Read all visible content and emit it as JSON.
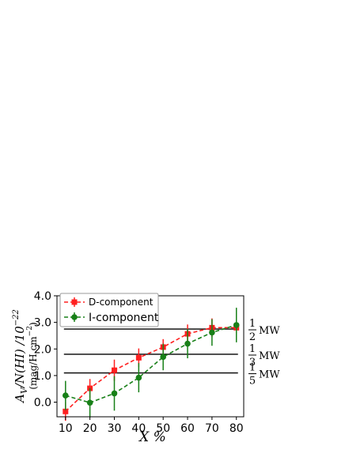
{
  "chart_data": {
    "type": "line",
    "x": [
      10,
      20,
      30,
      40,
      50,
      60,
      70,
      80
    ],
    "xticks": [
      "10",
      "20",
      "30",
      "40",
      "50",
      "60",
      "70",
      "80"
    ],
    "yticks": [
      "0.0",
      "1.0",
      "2.0",
      "3.0",
      "4.0"
    ],
    "ylim": [
      -0.55,
      4.0
    ],
    "xlim": [
      6.5,
      83
    ],
    "xlabel": "X %",
    "ylabel_main": "A_V/N(HI) /10^-22",
    "ylabel_units": "(mag/H cm^-2)",
    "grid": false,
    "legend_position": "top-left",
    "series": [
      {
        "name": "D-component",
        "color": "#ff2020",
        "marker": "square",
        "values": [
          -0.35,
          0.52,
          1.2,
          1.67,
          2.07,
          2.57,
          2.8,
          2.8
        ],
        "err": [
          0.35,
          0.35,
          0.4,
          0.35,
          0.3,
          0.35,
          0.35,
          0.5
        ]
      },
      {
        "name": "I-component",
        "color": "#188018",
        "marker": "circle",
        "values": [
          0.25,
          -0.02,
          0.33,
          0.92,
          1.7,
          2.2,
          2.62,
          2.9
        ],
        "err": [
          0.55,
          0.55,
          0.65,
          0.55,
          0.5,
          0.55,
          0.5,
          0.65
        ]
      }
    ],
    "reference_lines": [
      {
        "value": 2.75,
        "frac_num": "1",
        "frac_den": "2",
        "label": "MW"
      },
      {
        "value": 1.8,
        "frac_num": "1",
        "frac_den": "3",
        "label": "MW"
      },
      {
        "value": 1.1,
        "frac_num": "1",
        "frac_den": "5",
        "label": "MW"
      }
    ]
  }
}
